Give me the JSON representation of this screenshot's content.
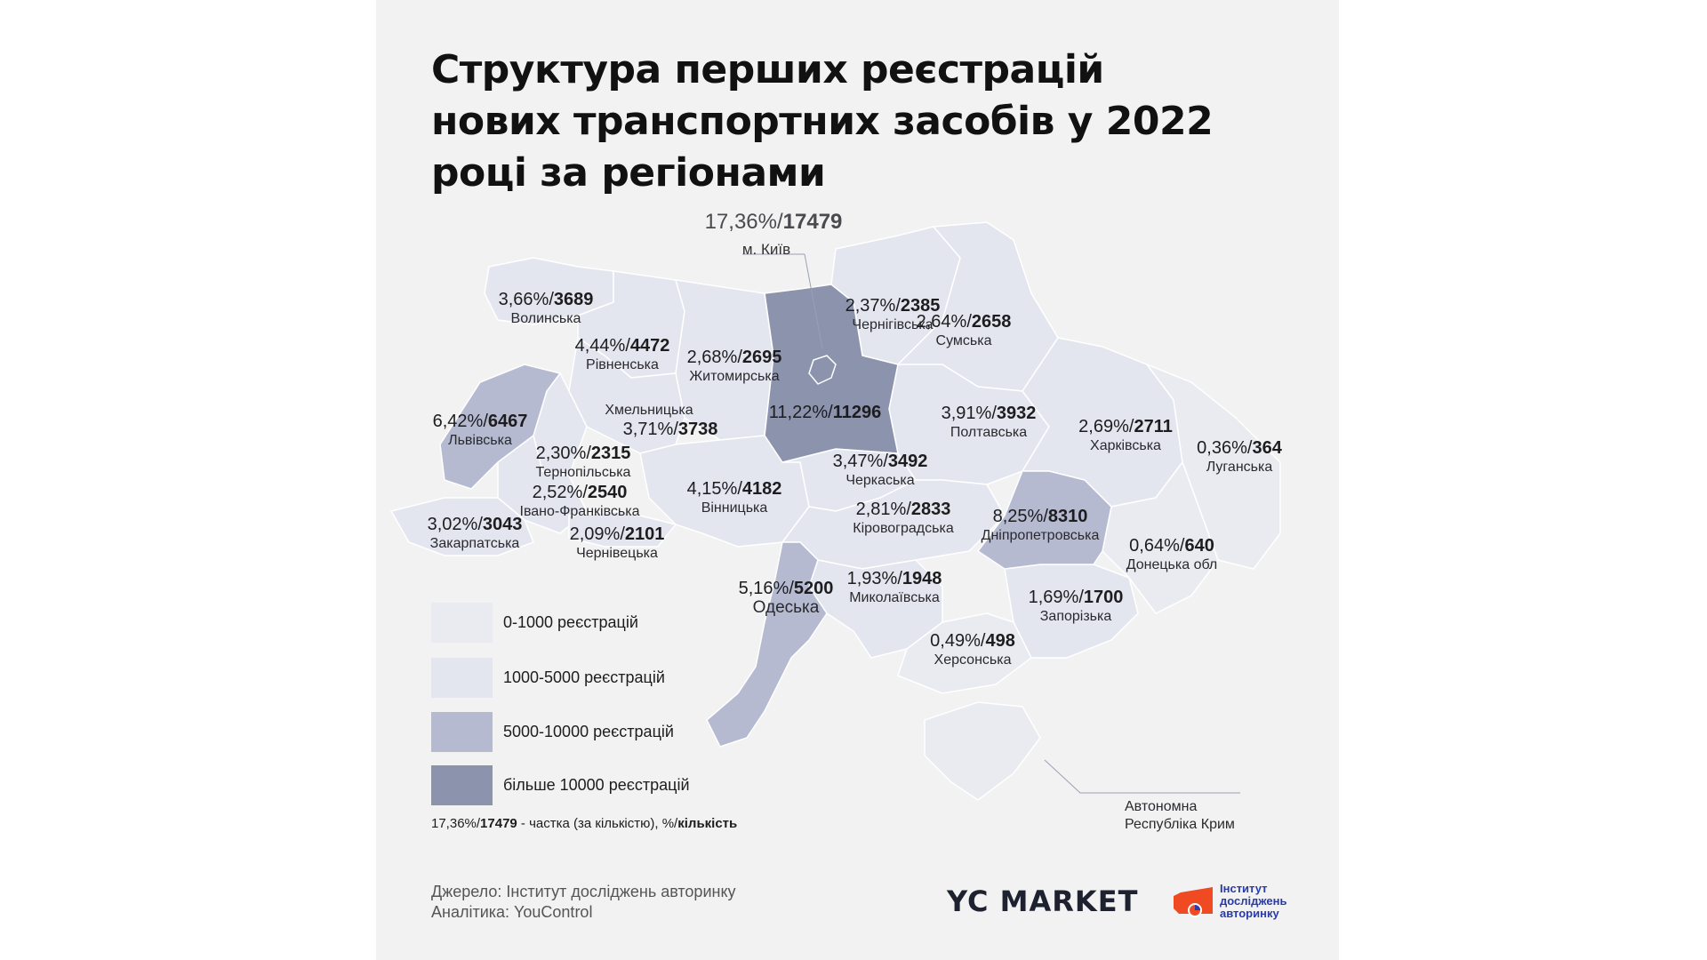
{
  "title": "Структура перших реєстрацій нових транспортних засобів у 2022 році за регіонами",
  "colors": {
    "bin_0_1000": "#e9ebf1",
    "bin_1000_5000": "#e4e6ef",
    "bin_5000_10000": "#b5bad1",
    "bin_10000_plus": "#8c93ad",
    "border": "#ffffff"
  },
  "kyiv_city": {
    "percent": "17,36%",
    "count": "17479",
    "name": "м. Київ"
  },
  "regions": [
    {
      "id": "volynska",
      "name": "Волинська",
      "percent": "3,66%",
      "count": "3689",
      "bin": "1000-5000"
    },
    {
      "id": "rivnenska",
      "name": "Рівненська",
      "percent": "4,44%",
      "count": "4472",
      "bin": "1000-5000"
    },
    {
      "id": "zhytomyrska",
      "name": "Житомирська",
      "percent": "2,68%",
      "count": "2695",
      "bin": "1000-5000"
    },
    {
      "id": "kyivska",
      "name": "",
      "percent": "11,22%",
      "count": "11296",
      "bin": "10000+"
    },
    {
      "id": "chernihivska",
      "name": "Чернігівська",
      "percent": "2,37%",
      "count": "2385",
      "bin": "1000-5000"
    },
    {
      "id": "sumska",
      "name": "Сумська",
      "percent": "2,64%",
      "count": "2658",
      "bin": "1000-5000"
    },
    {
      "id": "lvivska",
      "name": "Львівська",
      "percent": "6,42%",
      "count": "6467",
      "bin": "5000-10000"
    },
    {
      "id": "khmelnytska",
      "name": "Хмельницька",
      "percent": "3,71%",
      "count": "3738",
      "bin": "1000-5000"
    },
    {
      "id": "ternopilska",
      "name": "Тернопільська",
      "percent": "2,30%",
      "count": "2315",
      "bin": "1000-5000"
    },
    {
      "id": "ivano_frankivska",
      "name": "Івано-Франківська",
      "percent": "2,52%",
      "count": "2540",
      "bin": "1000-5000"
    },
    {
      "id": "zakarpatska",
      "name": "Закарпатська",
      "percent": "3,02%",
      "count": "3043",
      "bin": "1000-5000"
    },
    {
      "id": "chernivetska",
      "name": "Чернівецька",
      "percent": "2,09%",
      "count": "2101",
      "bin": "1000-5000"
    },
    {
      "id": "vinnytska",
      "name": "Вінницька",
      "percent": "4,15%",
      "count": "4182",
      "bin": "1000-5000"
    },
    {
      "id": "cherkaska",
      "name": "Черкаська",
      "percent": "3,47%",
      "count": "3492",
      "bin": "1000-5000"
    },
    {
      "id": "poltavska",
      "name": "Полтавська",
      "percent": "3,91%",
      "count": "3932",
      "bin": "1000-5000"
    },
    {
      "id": "kharkivska",
      "name": "Харківська",
      "percent": "2,69%",
      "count": "2711",
      "bin": "1000-5000"
    },
    {
      "id": "luhanska",
      "name": "Луганська",
      "percent": "0,36%",
      "count": "364",
      "bin": "0-1000"
    },
    {
      "id": "kirovohradska",
      "name": "Кіровоградська",
      "percent": "2,81%",
      "count": "2833",
      "bin": "1000-5000"
    },
    {
      "id": "dnipropetrovska",
      "name": "Дніпропетровська",
      "percent": "8,25%",
      "count": "8310",
      "bin": "5000-10000"
    },
    {
      "id": "donetska",
      "name": "Донецька обл",
      "percent": "0,64%",
      "count": "640",
      "bin": "0-1000"
    },
    {
      "id": "odeska",
      "name": "Одеська",
      "percent": "5,16%",
      "count": "5200",
      "bin": "5000-10000"
    },
    {
      "id": "mykolaivska",
      "name": "Миколаївська",
      "percent": "1,93%",
      "count": "1948",
      "bin": "1000-5000"
    },
    {
      "id": "zaporizka",
      "name": "Запорізька",
      "percent": "1,69%",
      "count": "1700",
      "bin": "1000-5000"
    },
    {
      "id": "khersonska",
      "name": "Херсонська",
      "percent": "0,49%",
      "count": "498",
      "bin": "0-1000"
    },
    {
      "id": "crimea",
      "name": "Автономна Республіка Крим",
      "percent": "",
      "count": "",
      "bin": "0-1000"
    }
  ],
  "crimea_label": {
    "line1": "Автономна",
    "line2": "Республіка Крим"
  },
  "legend": [
    {
      "label": "0-1000 реєстрацій",
      "color": "#e9ebf1"
    },
    {
      "label": "1000-5000 реєстрацій",
      "color": "#e4e6ef"
    },
    {
      "label": "5000-10000 реєстрацій",
      "color": "#b5bad1"
    },
    {
      "label": "більше 10000 реєстрацій",
      "color": "#8c93ad"
    }
  ],
  "legend_note": {
    "example_percent": "17,36%/",
    "example_count": "17479",
    "text": " - частка (за кількістю), %/",
    "text_bold": "кількість"
  },
  "source": {
    "line1": "Джерело: Інститут досліджень авторинку",
    "line2": "Аналітика: YouControl"
  },
  "logos": {
    "yc_market": "YC MARKET",
    "institute_line1": "Інститут",
    "institute_line2": "досліджень",
    "institute_line3": "авторинку"
  }
}
